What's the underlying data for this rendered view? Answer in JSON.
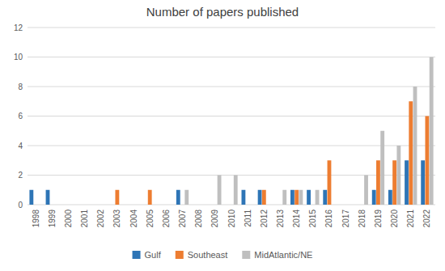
{
  "chart_data": {
    "type": "bar",
    "title": "Number of papers published",
    "categories": [
      "1998",
      "1999",
      "2000",
      "2001",
      "2002",
      "2003",
      "2004",
      "2005",
      "2006",
      "2007",
      "2008",
      "2009",
      "2010",
      "2011",
      "2012",
      "2013",
      "2014",
      "2015",
      "2016",
      "2017",
      "2018",
      "2019",
      "2020",
      "2021",
      "2022"
    ],
    "series": [
      {
        "name": "Gulf",
        "color": "#2e75b6",
        "values": [
          1,
          1,
          0,
          0,
          0,
          0,
          0,
          0,
          0,
          1,
          0,
          0,
          0,
          1,
          1,
          0,
          1,
          1,
          1,
          0,
          0,
          1,
          1,
          3,
          3
        ]
      },
      {
        "name": "Southeast",
        "color": "#ed7d31",
        "values": [
          0,
          0,
          0,
          0,
          0,
          1,
          0,
          1,
          0,
          0,
          0,
          0,
          0,
          0,
          1,
          0,
          1,
          0,
          3,
          0,
          0,
          3,
          3,
          7,
          6
        ]
      },
      {
        "name": "MidAtlantic/NE",
        "color": "#bfbfbf",
        "values": [
          0,
          0,
          0,
          0,
          0,
          0,
          0,
          0,
          0,
          1,
          0,
          2,
          2,
          0,
          0,
          1,
          1,
          1,
          0,
          0,
          2,
          5,
          4,
          8,
          10
        ]
      }
    ],
    "ylim": [
      0,
      12
    ],
    "yticks": [
      0,
      2,
      4,
      6,
      8,
      10,
      12
    ],
    "grid": true,
    "legend": "bottom"
  }
}
